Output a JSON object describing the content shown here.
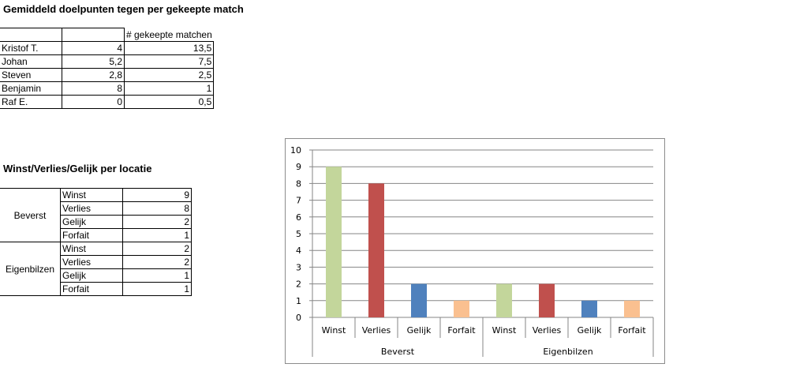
{
  "table1": {
    "title": "Gemiddeld doelpunten tegen per gekeepte match",
    "header": [
      "",
      "",
      "# gekeepte matchen"
    ],
    "rows": [
      {
        "name": "Kristof T.",
        "avg": "4",
        "matches": "13,5"
      },
      {
        "name": "Johan",
        "avg": "5,2",
        "matches": "7,5"
      },
      {
        "name": "Steven",
        "avg": "2,8",
        "matches": "2,5"
      },
      {
        "name": "Benjamin",
        "avg": "8",
        "matches": "1"
      },
      {
        "name": "Raf E.",
        "avg": "0",
        "matches": "0,5"
      }
    ]
  },
  "table2": {
    "title": "Winst/Verlies/Gelijk per locatie",
    "groups": [
      {
        "location": "Beverst",
        "rows": [
          {
            "label": "Winst",
            "value": "9"
          },
          {
            "label": "Verlies",
            "value": "8"
          },
          {
            "label": "Gelijk",
            "value": "2"
          },
          {
            "label": "Forfait",
            "value": "1"
          }
        ]
      },
      {
        "location": "Eigenbilzen",
        "rows": [
          {
            "label": "Winst",
            "value": "2"
          },
          {
            "label": "Verlies",
            "value": "2"
          },
          {
            "label": "Gelijk",
            "value": "1"
          },
          {
            "label": "Forfait",
            "value": "1"
          }
        ]
      }
    ]
  },
  "chart_data": {
    "type": "bar",
    "groups": [
      "Beverst",
      "Eigenbilzen"
    ],
    "categories": [
      "Winst",
      "Verlies",
      "Gelijk",
      "Forfait"
    ],
    "values": [
      [
        9,
        8,
        2,
        1
      ],
      [
        2,
        2,
        1,
        1
      ]
    ],
    "colors": [
      "#c3d69b",
      "#c0504d",
      "#4f81bd",
      "#fac090"
    ],
    "ylim": [
      0,
      10
    ],
    "yticks": [
      "0",
      "1",
      "2",
      "3",
      "4",
      "5",
      "6",
      "7",
      "8",
      "9",
      "10"
    ],
    "grid": true,
    "legend": "none"
  }
}
